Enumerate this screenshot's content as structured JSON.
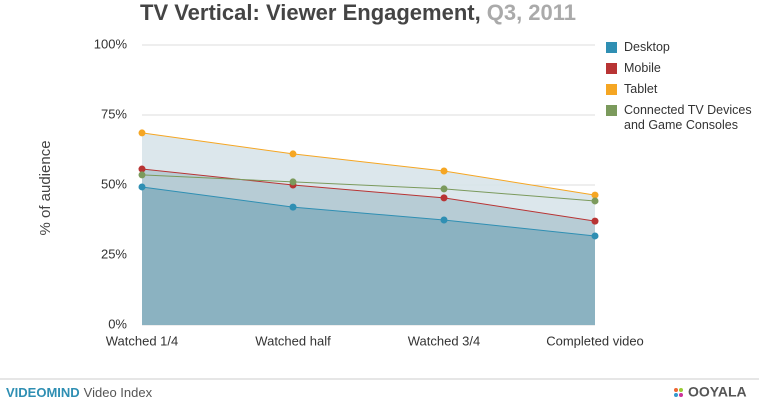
{
  "chart_data": {
    "type": "area",
    "title": "TV Vertical: Viewer Engagement,",
    "subtitle": "Q3, 2011",
    "y_label": "% of audience",
    "categories": [
      "Watched 1/4",
      "Watched half",
      "Watched 3/4",
      "Completed video"
    ],
    "series": [
      {
        "name": "Desktop",
        "color": "#2f8fb3",
        "area_color": "#86afbf",
        "values": [
          49.3,
          42.1,
          37.5,
          31.8
        ]
      },
      {
        "name": "Mobile",
        "color": "#b83434",
        "area_color": "#b2c9d3",
        "values": [
          55.7,
          50,
          45.4,
          37.1
        ]
      },
      {
        "name": "Tablet",
        "color": "#f5a623",
        "area_color": "#d8e4ea",
        "values": [
          68.6,
          61.1,
          55,
          46.4
        ]
      },
      {
        "name": "Connected TV Devices and Game Consoles",
        "color": "#7b9a5c",
        "values": [
          53.6,
          51.1,
          48.6,
          44.3
        ]
      }
    ],
    "ylim": [
      0,
      100
    ],
    "yticks": [
      {
        "value": 0,
        "label": "0%"
      },
      {
        "value": 25,
        "label": "25%"
      },
      {
        "value": 50,
        "label": "50%"
      },
      {
        "value": 75,
        "label": "75%"
      },
      {
        "value": 100,
        "label": "100%"
      }
    ],
    "grid": true
  },
  "footer": {
    "brand": "VIDEOMIND",
    "text": "Video Index",
    "logo": "OOYALA"
  }
}
